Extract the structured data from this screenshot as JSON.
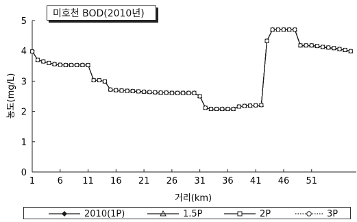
{
  "chart_data": {
    "type": "line",
    "title": "미호천 BOD(2010년)",
    "xlabel": "거리(km)",
    "ylabel": "농도(mg/L)",
    "xlim": [
      1,
      59
    ],
    "ylim": [
      0,
      5
    ],
    "xticks": [
      1,
      6,
      11,
      16,
      21,
      26,
      31,
      36,
      41,
      46,
      51
    ],
    "yticks": [
      0,
      1,
      2,
      3,
      4,
      5
    ],
    "grid": false,
    "legend_position": "bottom",
    "x": [
      1,
      2,
      3,
      4,
      5,
      6,
      7,
      8,
      9,
      10,
      11,
      12,
      13,
      14,
      15,
      16,
      17,
      18,
      19,
      20,
      21,
      22,
      23,
      24,
      25,
      26,
      27,
      28,
      29,
      30,
      31,
      32,
      33,
      34,
      35,
      36,
      37,
      38,
      39,
      40,
      41,
      42,
      43,
      44,
      45,
      46,
      47,
      48,
      49,
      50,
      51,
      52,
      53,
      54,
      55,
      56,
      57,
      58
    ],
    "series": [
      {
        "name": "2010(1P)",
        "marker": "diamond",
        "line": "solid",
        "values": [
          3.98,
          3.7,
          3.65,
          3.6,
          3.56,
          3.54,
          3.53,
          3.53,
          3.53,
          3.53,
          3.53,
          3.03,
          3.03,
          2.99,
          2.72,
          2.7,
          2.69,
          2.68,
          2.67,
          2.66,
          2.65,
          2.64,
          2.63,
          2.62,
          2.62,
          2.61,
          2.61,
          2.61,
          2.61,
          2.61,
          2.5,
          2.12,
          2.08,
          2.08,
          2.08,
          2.08,
          2.08,
          2.16,
          2.18,
          2.19,
          2.2,
          2.21,
          4.33,
          4.7,
          4.7,
          4.7,
          4.7,
          4.7,
          4.17,
          4.17,
          4.17,
          4.15,
          4.12,
          4.1,
          4.08,
          4.05,
          4.02,
          3.98
        ]
      },
      {
        "name": "1.5P",
        "marker": "triangle",
        "line": "solid",
        "values": [
          3.98,
          3.7,
          3.65,
          3.6,
          3.56,
          3.54,
          3.53,
          3.53,
          3.53,
          3.53,
          3.53,
          3.03,
          3.03,
          2.99,
          2.72,
          2.7,
          2.69,
          2.68,
          2.67,
          2.66,
          2.65,
          2.64,
          2.63,
          2.62,
          2.62,
          2.61,
          2.61,
          2.61,
          2.61,
          2.61,
          2.5,
          2.12,
          2.08,
          2.08,
          2.08,
          2.08,
          2.08,
          2.16,
          2.18,
          2.19,
          2.2,
          2.21,
          4.33,
          4.7,
          4.7,
          4.7,
          4.7,
          4.7,
          4.17,
          4.17,
          4.17,
          4.15,
          4.12,
          4.1,
          4.08,
          4.05,
          4.02,
          3.98
        ]
      },
      {
        "name": "2P",
        "marker": "square",
        "line": "solid",
        "values": [
          3.98,
          3.7,
          3.65,
          3.6,
          3.56,
          3.54,
          3.53,
          3.53,
          3.53,
          3.53,
          3.53,
          3.03,
          3.03,
          2.99,
          2.72,
          2.7,
          2.69,
          2.68,
          2.67,
          2.66,
          2.65,
          2.64,
          2.63,
          2.62,
          2.62,
          2.61,
          2.61,
          2.61,
          2.61,
          2.61,
          2.5,
          2.12,
          2.08,
          2.08,
          2.08,
          2.08,
          2.08,
          2.16,
          2.18,
          2.19,
          2.2,
          2.21,
          4.33,
          4.7,
          4.7,
          4.7,
          4.7,
          4.7,
          4.18,
          4.18,
          4.18,
          4.16,
          4.13,
          4.11,
          4.09,
          4.06,
          4.03,
          3.99
        ]
      },
      {
        "name": "3P",
        "marker": "circle",
        "line": "dotted",
        "values": [
          3.98,
          3.7,
          3.65,
          3.6,
          3.56,
          3.54,
          3.53,
          3.53,
          3.53,
          3.53,
          3.53,
          3.03,
          3.03,
          2.99,
          2.72,
          2.7,
          2.69,
          2.68,
          2.67,
          2.66,
          2.65,
          2.64,
          2.63,
          2.62,
          2.62,
          2.61,
          2.61,
          2.61,
          2.61,
          2.61,
          2.5,
          2.12,
          2.08,
          2.08,
          2.08,
          2.08,
          2.08,
          2.16,
          2.18,
          2.19,
          2.2,
          2.21,
          4.33,
          4.7,
          4.7,
          4.7,
          4.7,
          4.7,
          4.18,
          4.18,
          4.18,
          4.16,
          4.13,
          4.11,
          4.09,
          4.06,
          4.03,
          3.99
        ]
      }
    ]
  },
  "colors": {
    "line": "#1a1a1a",
    "axis": "#222222",
    "background": "#ffffff"
  }
}
